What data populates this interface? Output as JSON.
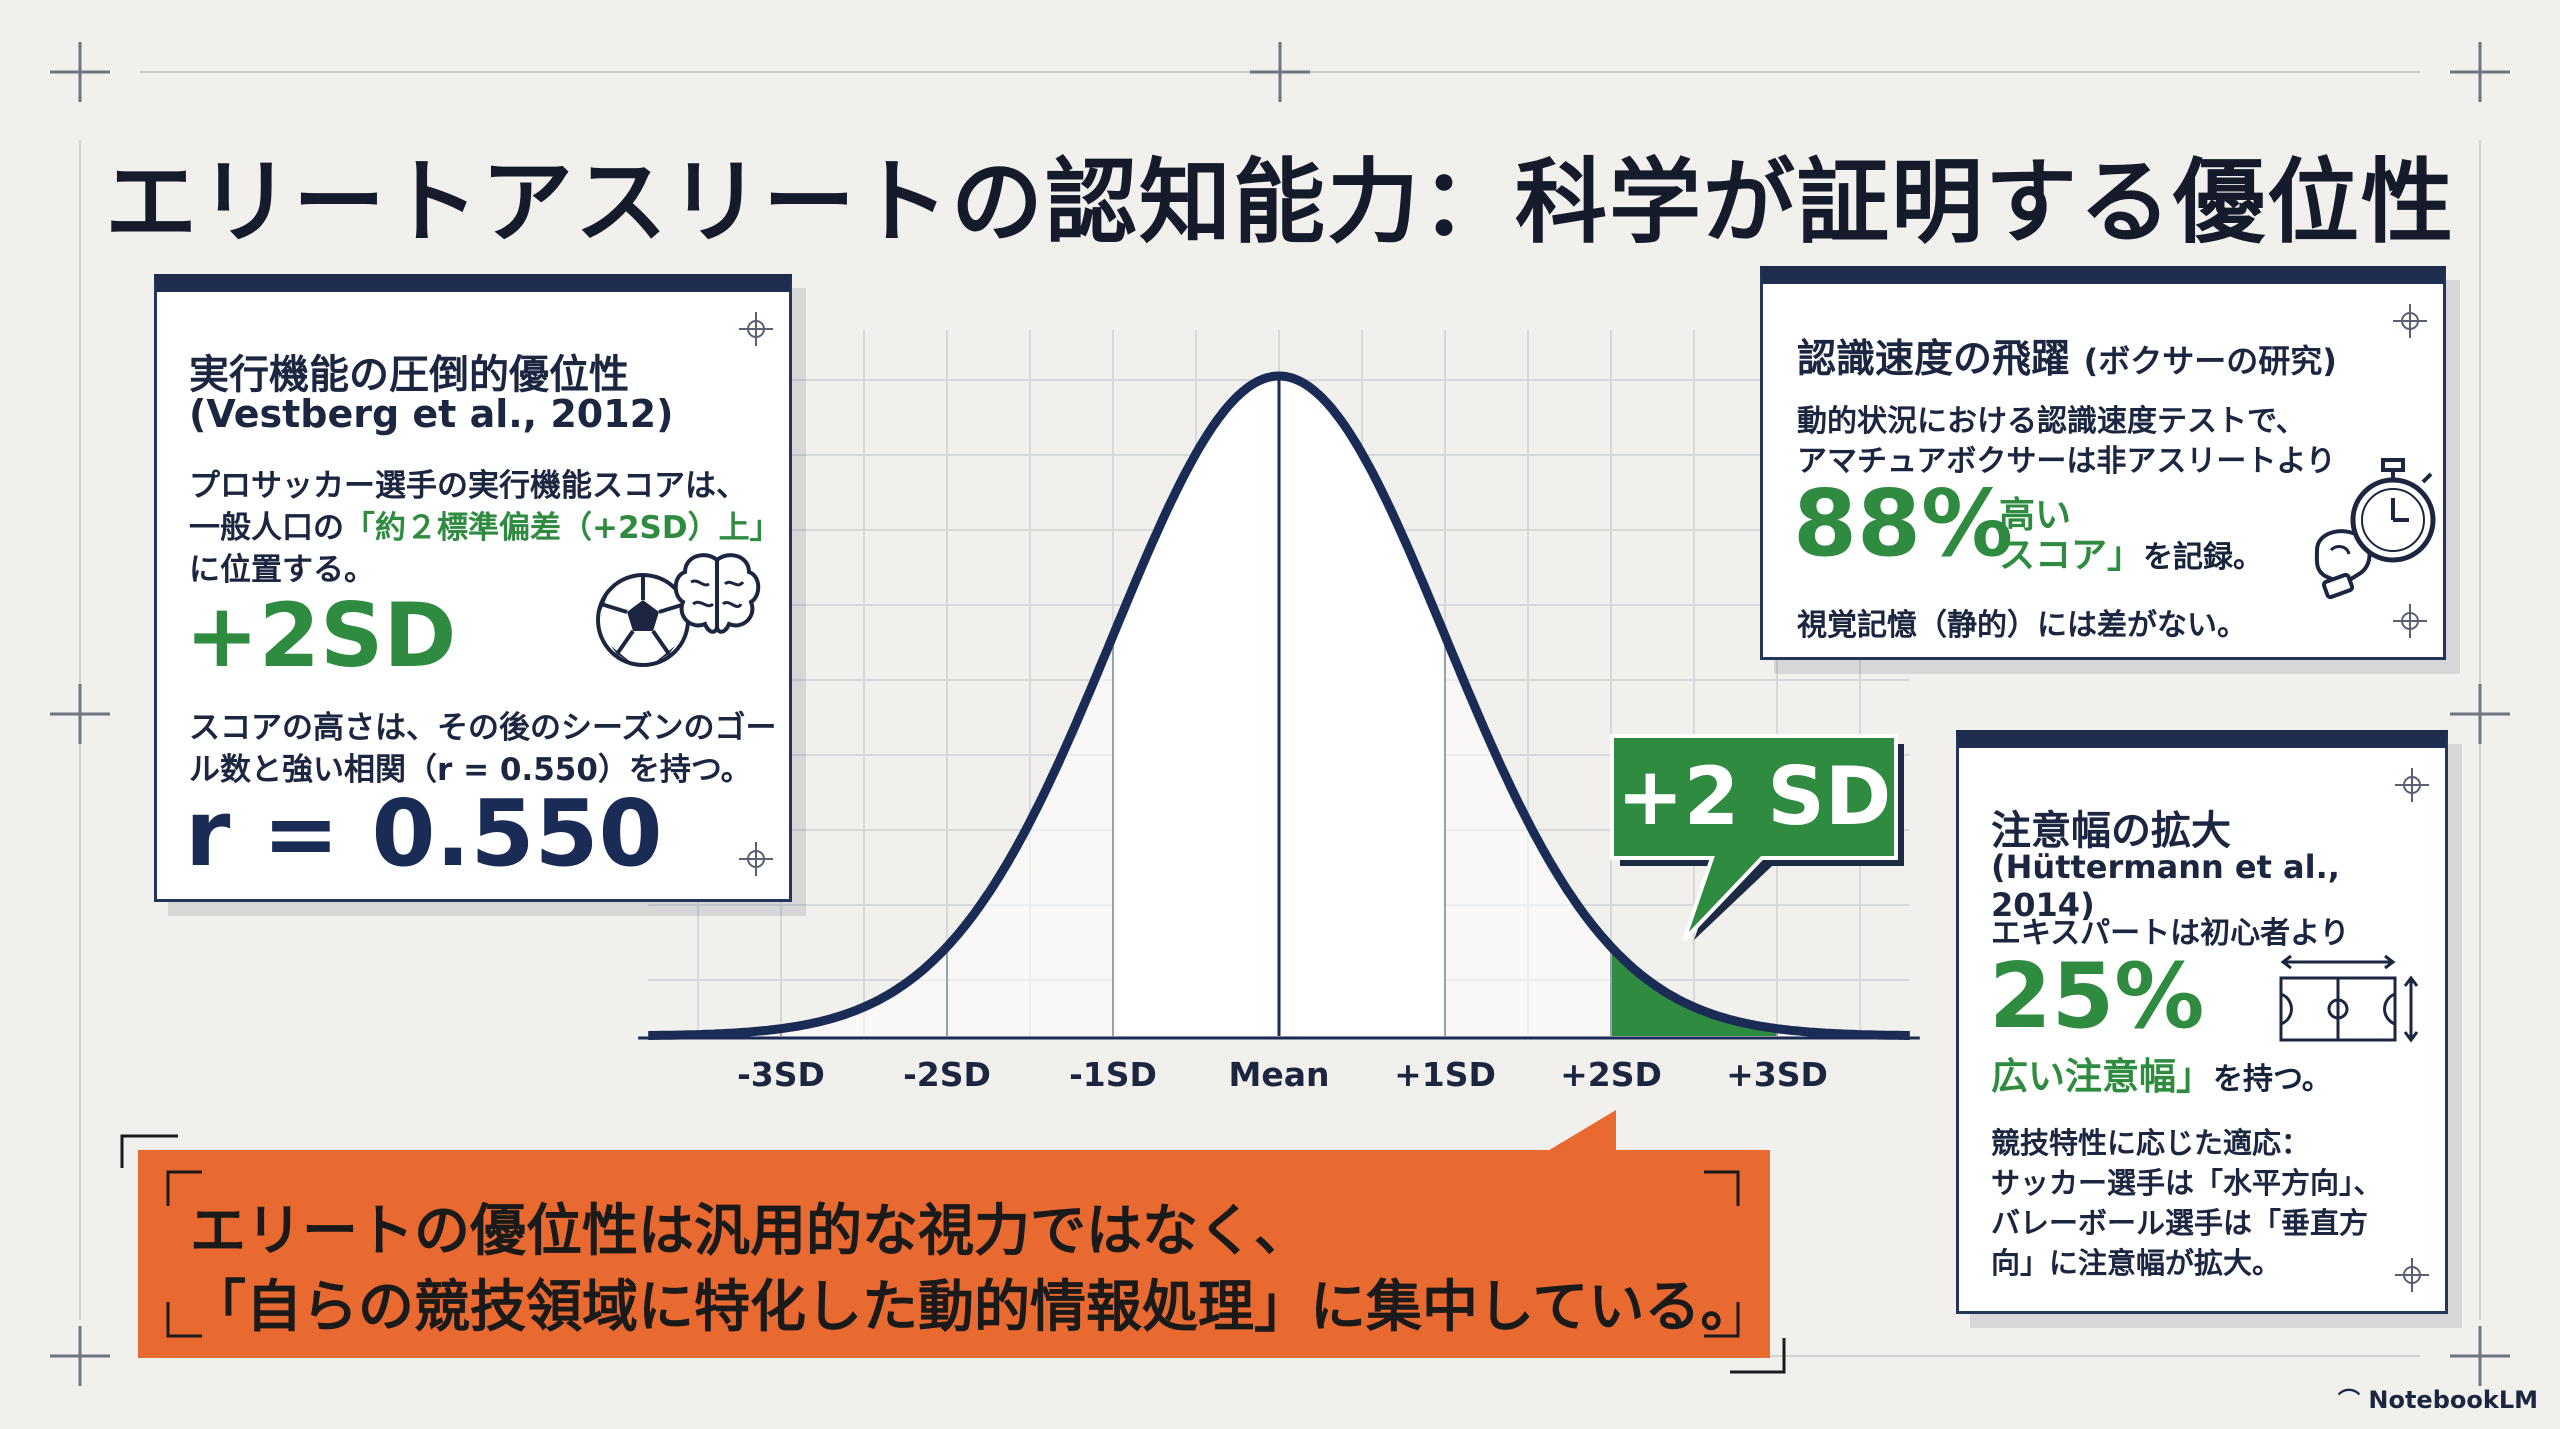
{
  "title": "エリートアスリートの認知能力：科学が証明する優位性",
  "left_card": {
    "heading": "実行機能の圧倒的優位性",
    "citation": "(Vestberg et al., 2012)",
    "para1_line1": "プロサッカー選手の実行機能スコアは、",
    "para1_line2_prefix": "一般人口の",
    "para1_line2_highlight": "「約２標準偏差（+2SD）上」",
    "para1_line3": "に位置する。",
    "big_stat": "+2SD",
    "para2_line1": "スコアの高さは、その後のシーズンのゴー",
    "para2_line2": "ル数と強い相関（r = 0.550）を持つ。",
    "big_r": "r = 0.550",
    "icons": [
      "soccer-ball-icon",
      "brain-icon"
    ]
  },
  "chart_data": {
    "type": "area",
    "distribution": "normal",
    "x_ticks": [
      "-3SD",
      "-2SD",
      "-1SD",
      "Mean",
      "+1SD",
      "+2SD",
      "+3SD"
    ],
    "x_values": [
      -3,
      -2,
      -1,
      0,
      1,
      2,
      3
    ],
    "xlim": [
      -3.8,
      3.8
    ],
    "highlight_region": {
      "from": 2,
      "to": 3,
      "color": "#2e8b3f"
    },
    "center_band": {
      "from": -1,
      "to": 1,
      "color": "#ffffff"
    },
    "callout_label": "+2 SD",
    "grid": true,
    "line_color": "#1a2b55"
  },
  "right_top_card": {
    "heading_main": "認識速度の飛躍",
    "heading_sub": "(ボクサーの研究)",
    "line1": "動的状況における認識速度テストで、",
    "line2": "アマチュアボクサーは非アスリートより",
    "big_stat": "88%",
    "stat_text_line1": "高い",
    "stat_text_line2": "スコア」",
    "stat_suffix": "を記録。",
    "line3": "視覚記憶（静的）には差がない。",
    "icons": [
      "boxing-glove-icon",
      "stopwatch-icon"
    ]
  },
  "right_bottom_card": {
    "heading": "注意幅の拡大",
    "citation": "(Hüttermann et al., 2014)",
    "line1": "エキスパートは初心者より",
    "big_stat": "25%",
    "stat_text": "広い注意幅」",
    "stat_suffix": "を持つ。",
    "line2": "競技特性に応じた適応：",
    "line3": "サッカー選手は「水平方向」、",
    "line4": "バレーボール選手は「垂直方",
    "line5": "向」に注意幅が拡大。",
    "icons": [
      "court-icon"
    ]
  },
  "callout": {
    "line1": "エリートの優位性は汎用的な視力ではなく、",
    "line2": "「自らの競技領域に特化した動的情報処理」に集中している。"
  },
  "brand": "NotebookLM",
  "colors": {
    "navy": "#1e2c4e",
    "green": "#2e8b3f",
    "orange": "#e96a31",
    "background": "#f1f0ec"
  }
}
